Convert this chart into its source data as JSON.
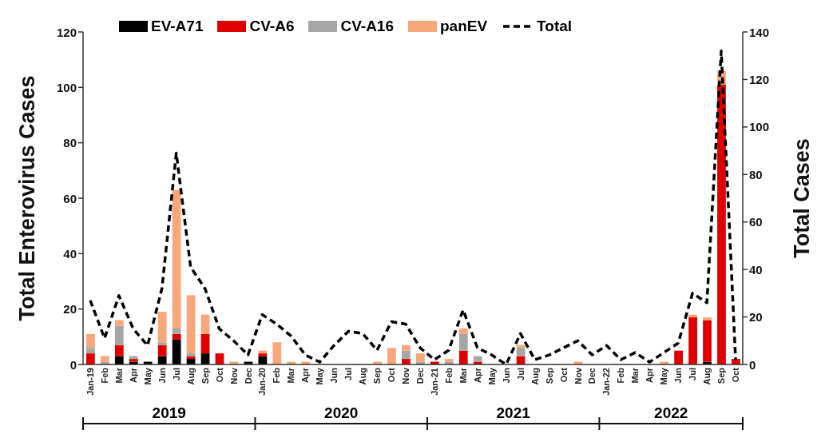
{
  "chart_data": {
    "type": "bar",
    "stacked": true,
    "ylabel": "Total Enterovirus Cases",
    "y2label": "Total Cases",
    "categories": [
      "Jan-19",
      "Feb",
      "Mar",
      "Apr",
      "May",
      "Jun",
      "Jul",
      "Aug",
      "Sep",
      "Oct",
      "Nov",
      "Dec",
      "Jan-20",
      "Feb",
      "Mar",
      "Apr",
      "May",
      "Jun",
      "Jul",
      "Aug",
      "Sep",
      "Oct",
      "Nov",
      "Dec",
      "Jan-21",
      "Feb",
      "Mar",
      "Apr",
      "May",
      "Jun",
      "Jul",
      "Aug",
      "Sep",
      "Oct",
      "Nov",
      "Dec",
      "Jan-22",
      "Feb",
      "Mar",
      "Apr",
      "May",
      "Jun",
      "Jul",
      "Aug",
      "Sep",
      "Oct"
    ],
    "series": [
      {
        "name": "EV-A71",
        "color": "#000000",
        "values": [
          0,
          0,
          3,
          1,
          1,
          3,
          9,
          2,
          4,
          0,
          0,
          1,
          3,
          0,
          0,
          0,
          0,
          0,
          0,
          0,
          0,
          0,
          0,
          0,
          0,
          0,
          0,
          0,
          0,
          0,
          0,
          0,
          0,
          0,
          0,
          0,
          0,
          0,
          0,
          0,
          0,
          0,
          0,
          1,
          0,
          0
        ]
      },
      {
        "name": "CV-A6",
        "color": "#e00000",
        "values": [
          4,
          0,
          4,
          1,
          0,
          4,
          2,
          1,
          7,
          4,
          0,
          0,
          1,
          0,
          0,
          0,
          0,
          0,
          0,
          0,
          0,
          0,
          2,
          0,
          1,
          0,
          5,
          1,
          0,
          0,
          3,
          0,
          0,
          0,
          0,
          0,
          0,
          0,
          0,
          0,
          0,
          5,
          17,
          15,
          101,
          2
        ]
      },
      {
        "name": "CV-A16",
        "color": "#a6a6a6",
        "values": [
          2,
          1,
          7,
          1,
          0,
          1,
          2,
          1,
          0,
          0,
          0,
          0,
          0,
          0,
          0,
          0,
          0,
          0,
          0,
          0,
          0,
          0,
          3,
          1,
          0,
          1,
          6,
          2,
          0,
          0,
          3,
          0,
          0,
          0,
          0,
          0,
          0,
          0,
          0,
          0,
          0,
          0,
          0,
          0,
          0,
          0
        ]
      },
      {
        "name": "panEV",
        "color": "#f8a77a",
        "values": [
          5,
          2,
          2,
          0,
          0,
          11,
          50,
          21,
          7,
          0,
          1,
          0,
          1,
          8,
          1,
          1,
          0,
          0,
          0,
          0,
          1,
          6,
          2,
          3,
          0,
          1,
          2,
          0,
          0,
          0,
          1,
          0,
          0,
          0,
          1,
          0,
          0,
          0,
          0,
          0,
          1,
          0,
          1,
          1,
          5,
          0
        ]
      },
      {
        "name": "Total",
        "type": "line",
        "axis": "y2",
        "color": "#000000",
        "line_style": "dashed",
        "values": [
          27,
          11,
          29,
          15,
          8,
          32,
          89,
          41,
          32,
          15,
          10,
          4,
          21,
          17,
          12,
          4,
          1,
          8,
          14,
          13,
          6,
          18,
          17,
          7,
          2,
          6,
          23,
          7,
          4,
          0,
          13,
          2,
          4,
          7,
          10,
          4,
          8,
          2,
          5,
          1,
          5,
          9,
          30,
          26,
          132,
          2
        ]
      }
    ],
    "ylim": [
      0,
      120
    ],
    "yticks": [
      0,
      20,
      40,
      60,
      80,
      100,
      120
    ],
    "y2lim": [
      0,
      140
    ],
    "y2ticks": [
      0,
      20,
      40,
      60,
      80,
      100,
      120,
      140
    ],
    "grid": false,
    "legend": "top left",
    "marker": "none",
    "annotations": [
      "2019",
      "2020",
      "2021",
      "2022"
    ]
  }
}
